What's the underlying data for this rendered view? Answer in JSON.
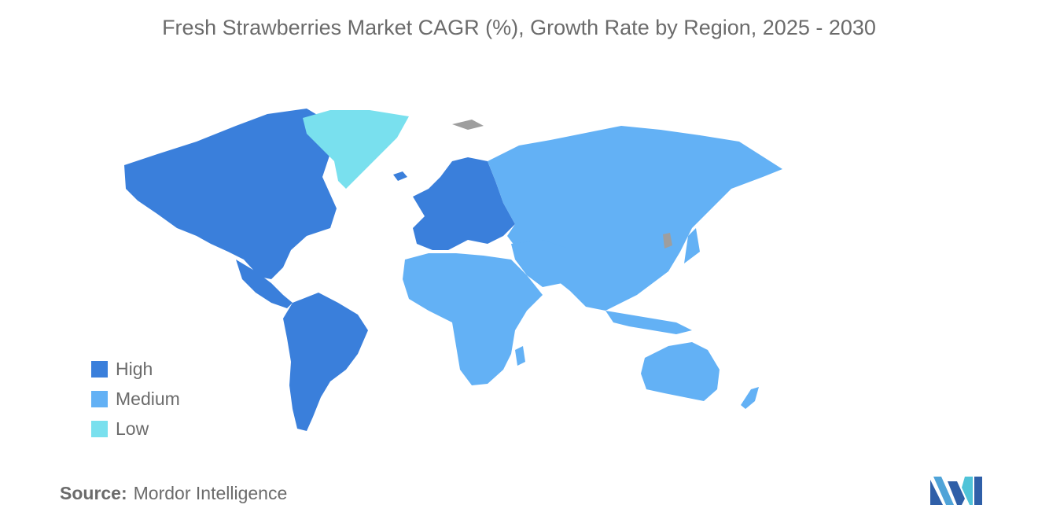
{
  "title": "Fresh Strawberries Market CAGR (%), Growth Rate by Region, 2025 - 2030",
  "legend": [
    {
      "label": "High",
      "color": "#3a7fdb"
    },
    {
      "label": "Medium",
      "color": "#63b1f5"
    },
    {
      "label": "Low",
      "color": "#79e0ee"
    }
  ],
  "no_data_color": "#9e9e9e",
  "source": {
    "label": "Source:",
    "value": "Mordor Intelligence"
  },
  "regions": {
    "north_america": "High",
    "south_america": "High",
    "europe": "High",
    "greenland": "Low",
    "asia_pacific": "Medium",
    "middle_east_africa": "Medium"
  }
}
